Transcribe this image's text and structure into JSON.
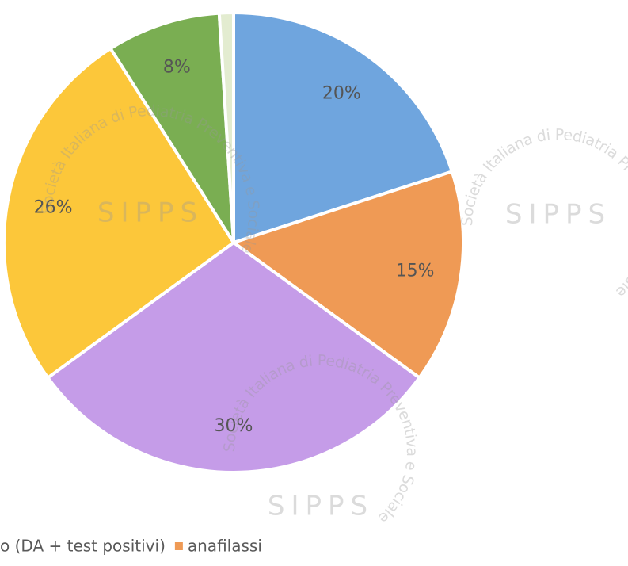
{
  "chart_data": {
    "type": "pie",
    "categories": [
      "o (DA + test positivi)",
      "anafilassi",
      null,
      null,
      null,
      null
    ],
    "values": [
      20,
      15,
      30,
      26,
      8,
      1
    ],
    "value_labels": [
      "20%",
      "15%",
      "30%",
      "26%",
      "8%",
      null
    ],
    "colors": [
      "#6fa5de",
      "#ef9a55",
      "#c59ce8",
      "#fcc73a",
      "#7aae52",
      "#e3ecd0"
    ],
    "watermark": {
      "text": "Società Italiana di Pediatria Preventiva e Sociale",
      "logo": "SIPPS"
    }
  }
}
